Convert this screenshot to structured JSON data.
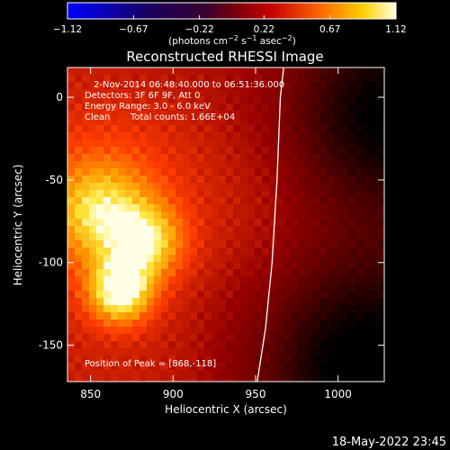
{
  "chart_data": {
    "type": "heatmap",
    "title": "Reconstructed RHESSI Image",
    "xlabel": "Heliocentric X (arcsec)",
    "ylabel": "Heliocentric Y (arcsec)",
    "xlim": [
      836,
      1028
    ],
    "ylim": [
      -172,
      18
    ],
    "xticks": [
      850,
      900,
      950,
      1000
    ],
    "yticks": [
      0,
      -50,
      -100,
      -150
    ],
    "colorbar": {
      "ticks": [
        "-1.12",
        "-0.67",
        "-0.22",
        "0.22",
        "0.67",
        "1.12"
      ],
      "range": [
        -1.12,
        1.12
      ],
      "units": "(photons cm^-2 s^-1 asec^-2)"
    },
    "annotations": {
      "time": "2-Nov-2014 06:48:40.000 to 06:51:36.000",
      "detectors": "Detectors: 3F 6F 9F, Att 0",
      "energy": "Energy Range: 3.0 - 6.0 keV",
      "method": "Clean",
      "counts": "Total counts: 1.66E+04",
      "peak": "Position of Peak = [868,-118]"
    },
    "peak": [
      868,
      -118
    ],
    "limb_curve": [
      [
        951,
        -172
      ],
      [
        956,
        -140
      ],
      [
        960,
        -100
      ],
      [
        963,
        -50
      ],
      [
        965,
        0
      ],
      [
        967,
        18
      ]
    ]
  },
  "timestamp": "18-May-2022 23:45"
}
